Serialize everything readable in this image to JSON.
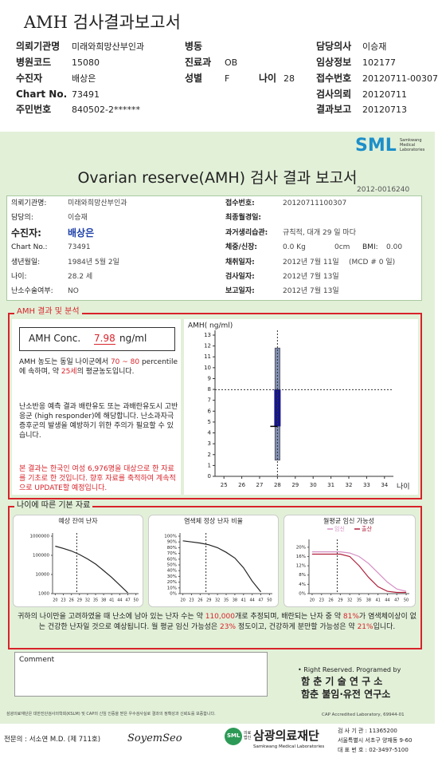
{
  "header": {
    "title": "AMH 검사결과보고서",
    "fields": [
      {
        "label": "의뢰기관명",
        "value": "미래와희망산부인과"
      },
      {
        "label": "병원코드",
        "value": "15080"
      },
      {
        "label": "수진자",
        "value": "배상은"
      },
      {
        "label": "Chart No.",
        "value": "73491"
      },
      {
        "label": "주민번호",
        "value": "840502-2******"
      },
      {
        "label": "병동"
      },
      {
        "label": "진료과",
        "value": "OB"
      },
      {
        "label": "성별",
        "value": "F"
      },
      {
        "label": "나이",
        "value": "28"
      },
      {
        "label": "담당의사",
        "value": "이승재"
      },
      {
        "label": "임상정보",
        "value": "102177"
      },
      {
        "label": "접수번호",
        "value": "20120711-00307"
      },
      {
        "label": "검사의뢰",
        "value": "20120711"
      },
      {
        "label": "결과보고",
        "value": "20120713"
      }
    ]
  },
  "report": {
    "logo": "SML",
    "logo_sub": "Samkwang Medical Laboratories",
    "title": "Ovarian reserve(AMH) 검사 결과 보고서",
    "number": "2012-0016240",
    "left": [
      {
        "label": "의뢰기관명:",
        "value": "미래와희망산부인과"
      },
      {
        "label": "담당의:",
        "value": "이승재"
      },
      {
        "label": "수진자:",
        "value": "배상은"
      },
      {
        "label": "Chart No.:",
        "value": "73491"
      },
      {
        "label": "생년월일:",
        "value": "1984년 5월 2일"
      },
      {
        "label": "나이:",
        "value": "28.2 세"
      },
      {
        "label": "난소수술여부:",
        "value": "NO"
      }
    ],
    "right": [
      {
        "label": "접수번호:",
        "value": "20120711100307"
      },
      {
        "label": "최종월경일:"
      },
      {
        "label": "과거생리습관:",
        "value": "규칙적, 대개 29 일 마다"
      },
      {
        "label": "체중/신장:",
        "value": "0.0 Kg",
        "extra": "0cm",
        "bmi_label": "BMI:",
        "bmi": "0.00"
      },
      {
        "label": "채취일자:",
        "value": "2012년 7월 11일",
        "extra": "(MCD # 0 일)"
      },
      {
        "label": "검사일자:",
        "value": "2012년 7월 13일"
      },
      {
        "label": "보고일자:",
        "value": "2012년 7월 13일"
      }
    ]
  },
  "amh": {
    "section_title": "AMH 결과 및 분석",
    "conc_label": "AMH Conc.",
    "conc_value": "7.98",
    "conc_unit": "ng/ml",
    "para1": [
      "AMH 농도는 동일 나이군에서 ",
      "70 ~ 80",
      " percentile에 속하며, 약 ",
      "25세",
      "의 평균농도입니다."
    ],
    "para2": "난소반응 예측 결과 배란유도 또는 과배란유도시 고반응군 (high responder)에 해당합니다. 난소과자극 증후군의 발생을 예방하기 위한 주의가 필요할 수 있습니다.",
    "note": "본 결과는 한국인 여성 6,976명을 대상으로 한 자료를 기초로 한 것입니다. 향후 자료를 축적하여 계속적으로 UPDATE할 예정입니다."
  },
  "age_section": {
    "title": "나이에 따른 기본 자료",
    "summary": [
      "귀하의 나이만을 고려하였을 때 난소에 남아 있는 난자 수는 약 ",
      "110,000",
      "개로 추정되며, 배란되는 난자 중 약 ",
      "81%",
      "가 염색체이상이 없는 건강한 난자일 것으로 예상됩니다. 월 평균 임신 가능성은 ",
      "23%",
      " 정도이고, 건강하게 분만할 가능성은 약 ",
      "21%",
      "입니다."
    ]
  },
  "comment": {
    "label": "Comment"
  },
  "credits": {
    "rights": "• Right Reserved. Programed by",
    "lab1": "함 춘 기 술 연 구 소",
    "lab2": "함춘 불임·유전 연구소"
  },
  "footer": {
    "notice": "삼광의료재단은 대한진단검사의학회(KSLM) 및 CAP의 신임 인증을 받은 우수검사실로 결과의 정확성과 신뢰도를 보증합니다.",
    "cap": "CAP Accredited Laboratory, 69944-01",
    "physician": "전문의 : 서소연 M.D. (제 711호)",
    "signature": "SoyemSeo",
    "logo": "SML",
    "corp": "의료법인",
    "org": "삼광의료재단",
    "org_en": "Samkwang Medical Laboratories",
    "lab_code": "검 사 기 관 : 11365200",
    "address": "서울특별시 서초구 양재동 9-60",
    "phone": "대 표 번 호 : 02-3497-5100"
  },
  "chart_data": [
    {
      "type": "range",
      "y_label": "AMH( ng/ml)",
      "x_label": "나이",
      "xlim": [
        24.5,
        34.5
      ],
      "xticks": [
        25,
        26,
        27,
        28,
        29,
        30,
        31,
        32,
        33,
        34
      ],
      "ylim": [
        0,
        13
      ],
      "yticks": [
        0,
        1,
        2,
        3,
        4,
        5,
        6,
        7,
        8,
        9,
        10,
        11,
        12,
        13
      ],
      "range": {
        "x": 28,
        "low": 1.5,
        "high": 11.8,
        "color": "#8290b4"
      },
      "box": {
        "low": 4.6,
        "high": 8.0,
        "color": "#16168a"
      },
      "patient": {
        "x": 28,
        "y": 7.98
      }
    },
    {
      "type": "line",
      "title": "예상 잔여 난자",
      "log_y": true,
      "x": [
        20,
        23,
        26,
        29,
        32,
        35,
        38,
        41,
        44,
        47,
        50
      ],
      "xlim": [
        19,
        51
      ],
      "xticks": [
        20,
        23,
        26,
        29,
        32,
        35,
        38,
        41,
        44,
        47,
        50
      ],
      "ylim": [
        1000,
        1000000
      ],
      "yticks": [
        1000,
        10000,
        100000,
        1000000
      ],
      "marker_x": 28,
      "series": [
        {
          "color": "#222222",
          "values": [
            300000,
            230000,
            170000,
            110000,
            65000,
            35000,
            16000,
            7000,
            2800,
            1100,
            null
          ]
        }
      ]
    },
    {
      "type": "line",
      "title": "염색체 정상 난자 비율",
      "x": [
        20,
        23,
        26,
        29,
        32,
        35,
        38,
        41,
        44,
        47,
        50
      ],
      "xlim": [
        19,
        51
      ],
      "xticks": [
        20,
        23,
        26,
        29,
        32,
        35,
        38,
        41,
        44,
        47,
        50
      ],
      "ylim": [
        0,
        100
      ],
      "yticks": [
        {
          "value": 0,
          "label": "0%"
        },
        {
          "value": 10,
          "label": "10%"
        },
        {
          "value": 20,
          "label": "20%"
        },
        {
          "value": 30,
          "label": "30%"
        },
        {
          "value": 40,
          "label": "40%"
        },
        {
          "value": 50,
          "label": "50%"
        },
        {
          "value": 60,
          "label": "60%"
        },
        {
          "value": 70,
          "label": "70%"
        },
        {
          "value": 80,
          "label": "80%"
        },
        {
          "value": 90,
          "label": "90%"
        },
        {
          "value": 100,
          "label": "100%"
        }
      ],
      "marker_x": 28,
      "series": [
        {
          "color": "#222222",
          "values": [
            92,
            90,
            88,
            85,
            80,
            72,
            62,
            45,
            22,
            3,
            null
          ]
        }
      ]
    },
    {
      "type": "line",
      "title": "월평균 임신 가능성",
      "x": [
        20,
        23,
        26,
        29,
        32,
        35,
        38,
        41,
        44,
        47,
        50
      ],
      "xlim": [
        19,
        51
      ],
      "xticks": [
        20,
        23,
        26,
        29,
        32,
        35,
        38,
        41,
        44,
        47,
        50
      ],
      "ylim": [
        0,
        22
      ],
      "yticks": [
        {
          "value": 0,
          "label": "0%"
        },
        {
          "value": 4,
          "label": "4%"
        },
        {
          "value": 8,
          "label": "8%"
        },
        {
          "value": 12,
          "label": "12%"
        },
        {
          "value": 16,
          "label": "16%"
        },
        {
          "value": 20,
          "label": "20%"
        }
      ],
      "marker_x": 28,
      "series": [
        {
          "name": "임신",
          "color": "#d58fc4",
          "values": [
            18,
            18,
            18,
            18,
            17.5,
            16,
            13,
            9,
            5,
            2,
            1
          ]
        },
        {
          "name": "출산",
          "color": "#b0203c",
          "values": [
            17,
            17,
            17,
            17,
            16,
            12,
            7,
            3,
            1,
            0.5,
            0.5
          ]
        }
      ]
    }
  ]
}
